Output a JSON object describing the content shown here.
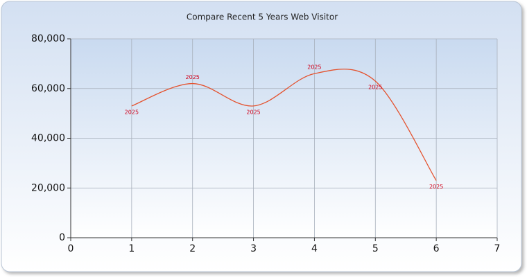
{
  "chart_data": {
    "type": "line",
    "title": "Compare Recent 5 Years Web Visitor",
    "x": [
      1,
      2,
      3,
      4,
      5,
      6
    ],
    "series": [
      {
        "name": "2025",
        "color": "#e4522e",
        "values": [
          53000,
          62000,
          53000,
          66000,
          63000,
          23000
        ]
      }
    ],
    "xlim": [
      0,
      7
    ],
    "xticks": [
      0,
      1,
      2,
      3,
      4,
      5,
      6,
      7
    ],
    "ylim": [
      0,
      80000
    ],
    "yticks": [
      0,
      {
        "value": 20000,
        "label": "20,000"
      },
      {
        "value": 40000,
        "label": "40,000"
      },
      {
        "value": 60000,
        "label": "60,000"
      },
      {
        "value": 80000,
        "label": "80,000"
      }
    ],
    "grid": true,
    "smooth": true,
    "label_color": "#d0021b"
  }
}
